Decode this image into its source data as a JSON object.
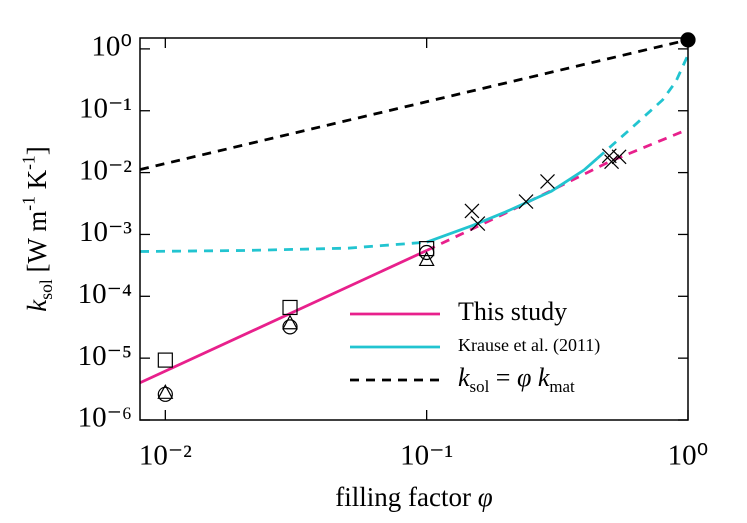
{
  "chart_data": {
    "type": "line",
    "log_x": true,
    "log_y": true,
    "x_label": [
      {
        "text": "filling factor "
      },
      {
        "text": "φ",
        "style": "italic"
      }
    ],
    "y_label": [
      {
        "text": "k",
        "style": "italic"
      },
      {
        "text": "sol",
        "style": "sub"
      },
      {
        "text": " [W m"
      },
      {
        "text": "-1",
        "style": "sup"
      },
      {
        "text": " K"
      },
      {
        "text": "-1",
        "style": "sup"
      },
      {
        "text": "]"
      }
    ],
    "xlim": [
      0.008,
      1
    ],
    "ylim": [
      1e-06,
      1.5
    ],
    "xticks": [
      {
        "value": 0.01,
        "label": "10⁻²"
      },
      {
        "value": 0.1,
        "label": "10⁻¹"
      },
      {
        "value": 1,
        "label": "10⁰"
      }
    ],
    "yticks": [
      {
        "value": 1e-06,
        "label": "10⁻⁶"
      },
      {
        "value": 1e-05,
        "label": "10⁻⁵"
      },
      {
        "value": 0.0001,
        "label": "10⁻⁴"
      },
      {
        "value": 0.001,
        "label": "10⁻³"
      },
      {
        "value": 0.01,
        "label": "10⁻²"
      },
      {
        "value": 0.1,
        "label": "10⁻¹"
      },
      {
        "value": 1,
        "label": "10⁰"
      }
    ],
    "legend": "lower right",
    "series": [
      {
        "name": "This study",
        "kind": "line",
        "style": "solid",
        "color": "#e8208c",
        "x": [
          0.008,
          0.1
        ],
        "values": [
          4e-06,
          0.00055
        ]
      },
      {
        "kind": "line",
        "style": "dashed",
        "color": "#e8208c",
        "x": [
          0.1,
          0.2,
          0.5,
          1
        ],
        "values": [
          0.00055,
          0.0022,
          0.015,
          0.05
        ]
      },
      {
        "name": "Krause et al. (2011)",
        "kind": "line",
        "style": "solid",
        "color": "#22c4d0",
        "x": [
          0.1,
          0.15,
          0.2,
          0.3,
          0.4,
          0.45
        ],
        "values": [
          0.00075,
          0.0014,
          0.0023,
          0.005,
          0.011,
          0.017
        ]
      },
      {
        "kind": "line",
        "style": "dashed",
        "color": "#22c4d0",
        "x": [
          0.008,
          0.02,
          0.05,
          0.1
        ],
        "values": [
          0.00053,
          0.00055,
          0.0006,
          0.00075
        ]
      },
      {
        "kind": "line",
        "style": "dashed",
        "color": "#22c4d0",
        "x": [
          0.45,
          0.6,
          0.8,
          0.9,
          1
        ],
        "values": [
          0.017,
          0.05,
          0.15,
          0.3,
          0.8
        ]
      },
      {
        "name": [
          {
            "text": "k",
            "style": "italic"
          },
          {
            "text": "sol",
            "style": "sub"
          },
          {
            "text": " = "
          },
          {
            "text": "φ k",
            "style": "italic"
          },
          {
            "text": "mat",
            "style": "sub"
          }
        ],
        "kind": "line",
        "style": "dashed",
        "color": "#000000",
        "x": [
          0.008,
          1
        ],
        "values": [
          0.0112,
          1.4
        ]
      },
      {
        "kind": "marker",
        "shape": "square",
        "color": "#000000",
        "x": [
          0.01,
          0.03,
          0.1
        ],
        "values": [
          9.3e-06,
          6.6e-05,
          0.00059
        ]
      },
      {
        "kind": "marker",
        "shape": "circle",
        "color": "#000000",
        "x": [
          0.01,
          0.03,
          0.1
        ],
        "values": [
          2.6e-06,
          3.2e-05,
          0.00051
        ]
      },
      {
        "kind": "marker",
        "shape": "triangle",
        "color": "#000000",
        "x": [
          0.01,
          0.03,
          0.1
        ],
        "values": [
          2.7e-06,
          3.6e-05,
          0.00038
        ]
      },
      {
        "kind": "marker",
        "shape": "cross",
        "color": "#000000",
        "x": [
          0.149,
          0.157,
          0.24,
          0.29,
          0.5,
          0.51,
          0.545
        ],
        "values": [
          0.0024,
          0.0015,
          0.0034,
          0.0072,
          0.0187,
          0.015,
          0.018
        ]
      },
      {
        "kind": "marker",
        "shape": "dot",
        "color": "#000000",
        "x": [
          1
        ],
        "values": [
          1.4
        ]
      }
    ]
  }
}
